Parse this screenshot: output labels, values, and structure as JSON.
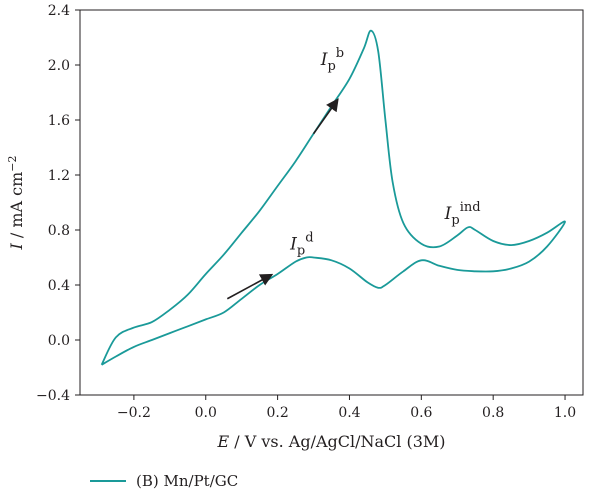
{
  "chart_data": {
    "type": "line",
    "xlabel": "E / V vs. Ag/AgCl/NaCl (3M)",
    "xlabel_italic": "E",
    "xlabel_rest": " / V vs. Ag/AgCl/NaCl (3M)",
    "ylabel": "I / mA cm⁻²",
    "ylabel_italic": "I",
    "ylabel_rest": " / mA cm",
    "ylabel_sup": "−2",
    "xlim": [
      -0.35,
      1.05
    ],
    "ylim": [
      -0.4,
      2.4
    ],
    "xticks": [
      -0.2,
      0.0,
      0.2,
      0.4,
      0.6,
      0.8,
      1.0
    ],
    "xtick_labels": [
      "−0.2",
      "0.0",
      "0.2",
      "0.4",
      "0.6",
      "0.8",
      "1.0"
    ],
    "yticks": [
      -0.4,
      0.0,
      0.4,
      0.8,
      1.2,
      1.6,
      2.0,
      2.4
    ],
    "ytick_labels": [
      "−0.4",
      "0.0",
      "0.4",
      "0.8",
      "1.2",
      "1.6",
      "2.0",
      "2.4"
    ],
    "series": [
      {
        "name": "(B) Mn/Pt/GC",
        "color": "#1a9a99",
        "x": [
          -0.29,
          -0.25,
          -0.2,
          -0.15,
          -0.1,
          -0.05,
          0.0,
          0.05,
          0.1,
          0.15,
          0.2,
          0.25,
          0.3,
          0.35,
          0.4,
          0.44,
          0.46,
          0.48,
          0.5,
          0.52,
          0.55,
          0.6,
          0.65,
          0.7,
          0.73,
          0.75,
          0.8,
          0.85,
          0.9,
          0.95,
          1.0,
          0.95,
          0.9,
          0.85,
          0.8,
          0.75,
          0.7,
          0.65,
          0.6,
          0.55,
          0.5,
          0.48,
          0.45,
          0.4,
          0.35,
          0.3,
          0.28,
          0.25,
          0.2,
          0.15,
          0.1,
          0.05,
          0.0,
          -0.05,
          -0.1,
          -0.15,
          -0.2,
          -0.25,
          -0.29
        ],
        "y": [
          -0.18,
          0.02,
          0.09,
          0.13,
          0.22,
          0.33,
          0.48,
          0.62,
          0.78,
          0.94,
          1.12,
          1.3,
          1.5,
          1.7,
          1.9,
          2.12,
          2.25,
          2.1,
          1.6,
          1.15,
          0.85,
          0.7,
          0.68,
          0.76,
          0.82,
          0.8,
          0.72,
          0.69,
          0.72,
          0.78,
          0.86,
          0.68,
          0.57,
          0.52,
          0.5,
          0.5,
          0.51,
          0.54,
          0.58,
          0.5,
          0.4,
          0.38,
          0.42,
          0.52,
          0.58,
          0.6,
          0.6,
          0.57,
          0.48,
          0.4,
          0.3,
          0.2,
          0.15,
          0.1,
          0.05,
          0.0,
          -0.05,
          -0.12,
          -0.18
        ]
      }
    ],
    "annotations": [
      {
        "main": "I",
        "sub": "p",
        "sup": "b",
        "x": 0.32,
        "y": 2.0
      },
      {
        "main": "I",
        "sub": "p",
        "sup": "ind",
        "x": 0.665,
        "y": 0.88
      },
      {
        "main": "I",
        "sub": "p",
        "sup": "d",
        "x": 0.235,
        "y": 0.66
      }
    ],
    "arrows": [
      {
        "x1": 0.3,
        "y1": 1.5,
        "x2": 0.365,
        "y2": 1.74
      },
      {
        "x1": 0.06,
        "y1": 0.3,
        "x2": 0.18,
        "y2": 0.47
      }
    ],
    "grid": false,
    "legend_position": "bottom-left"
  }
}
